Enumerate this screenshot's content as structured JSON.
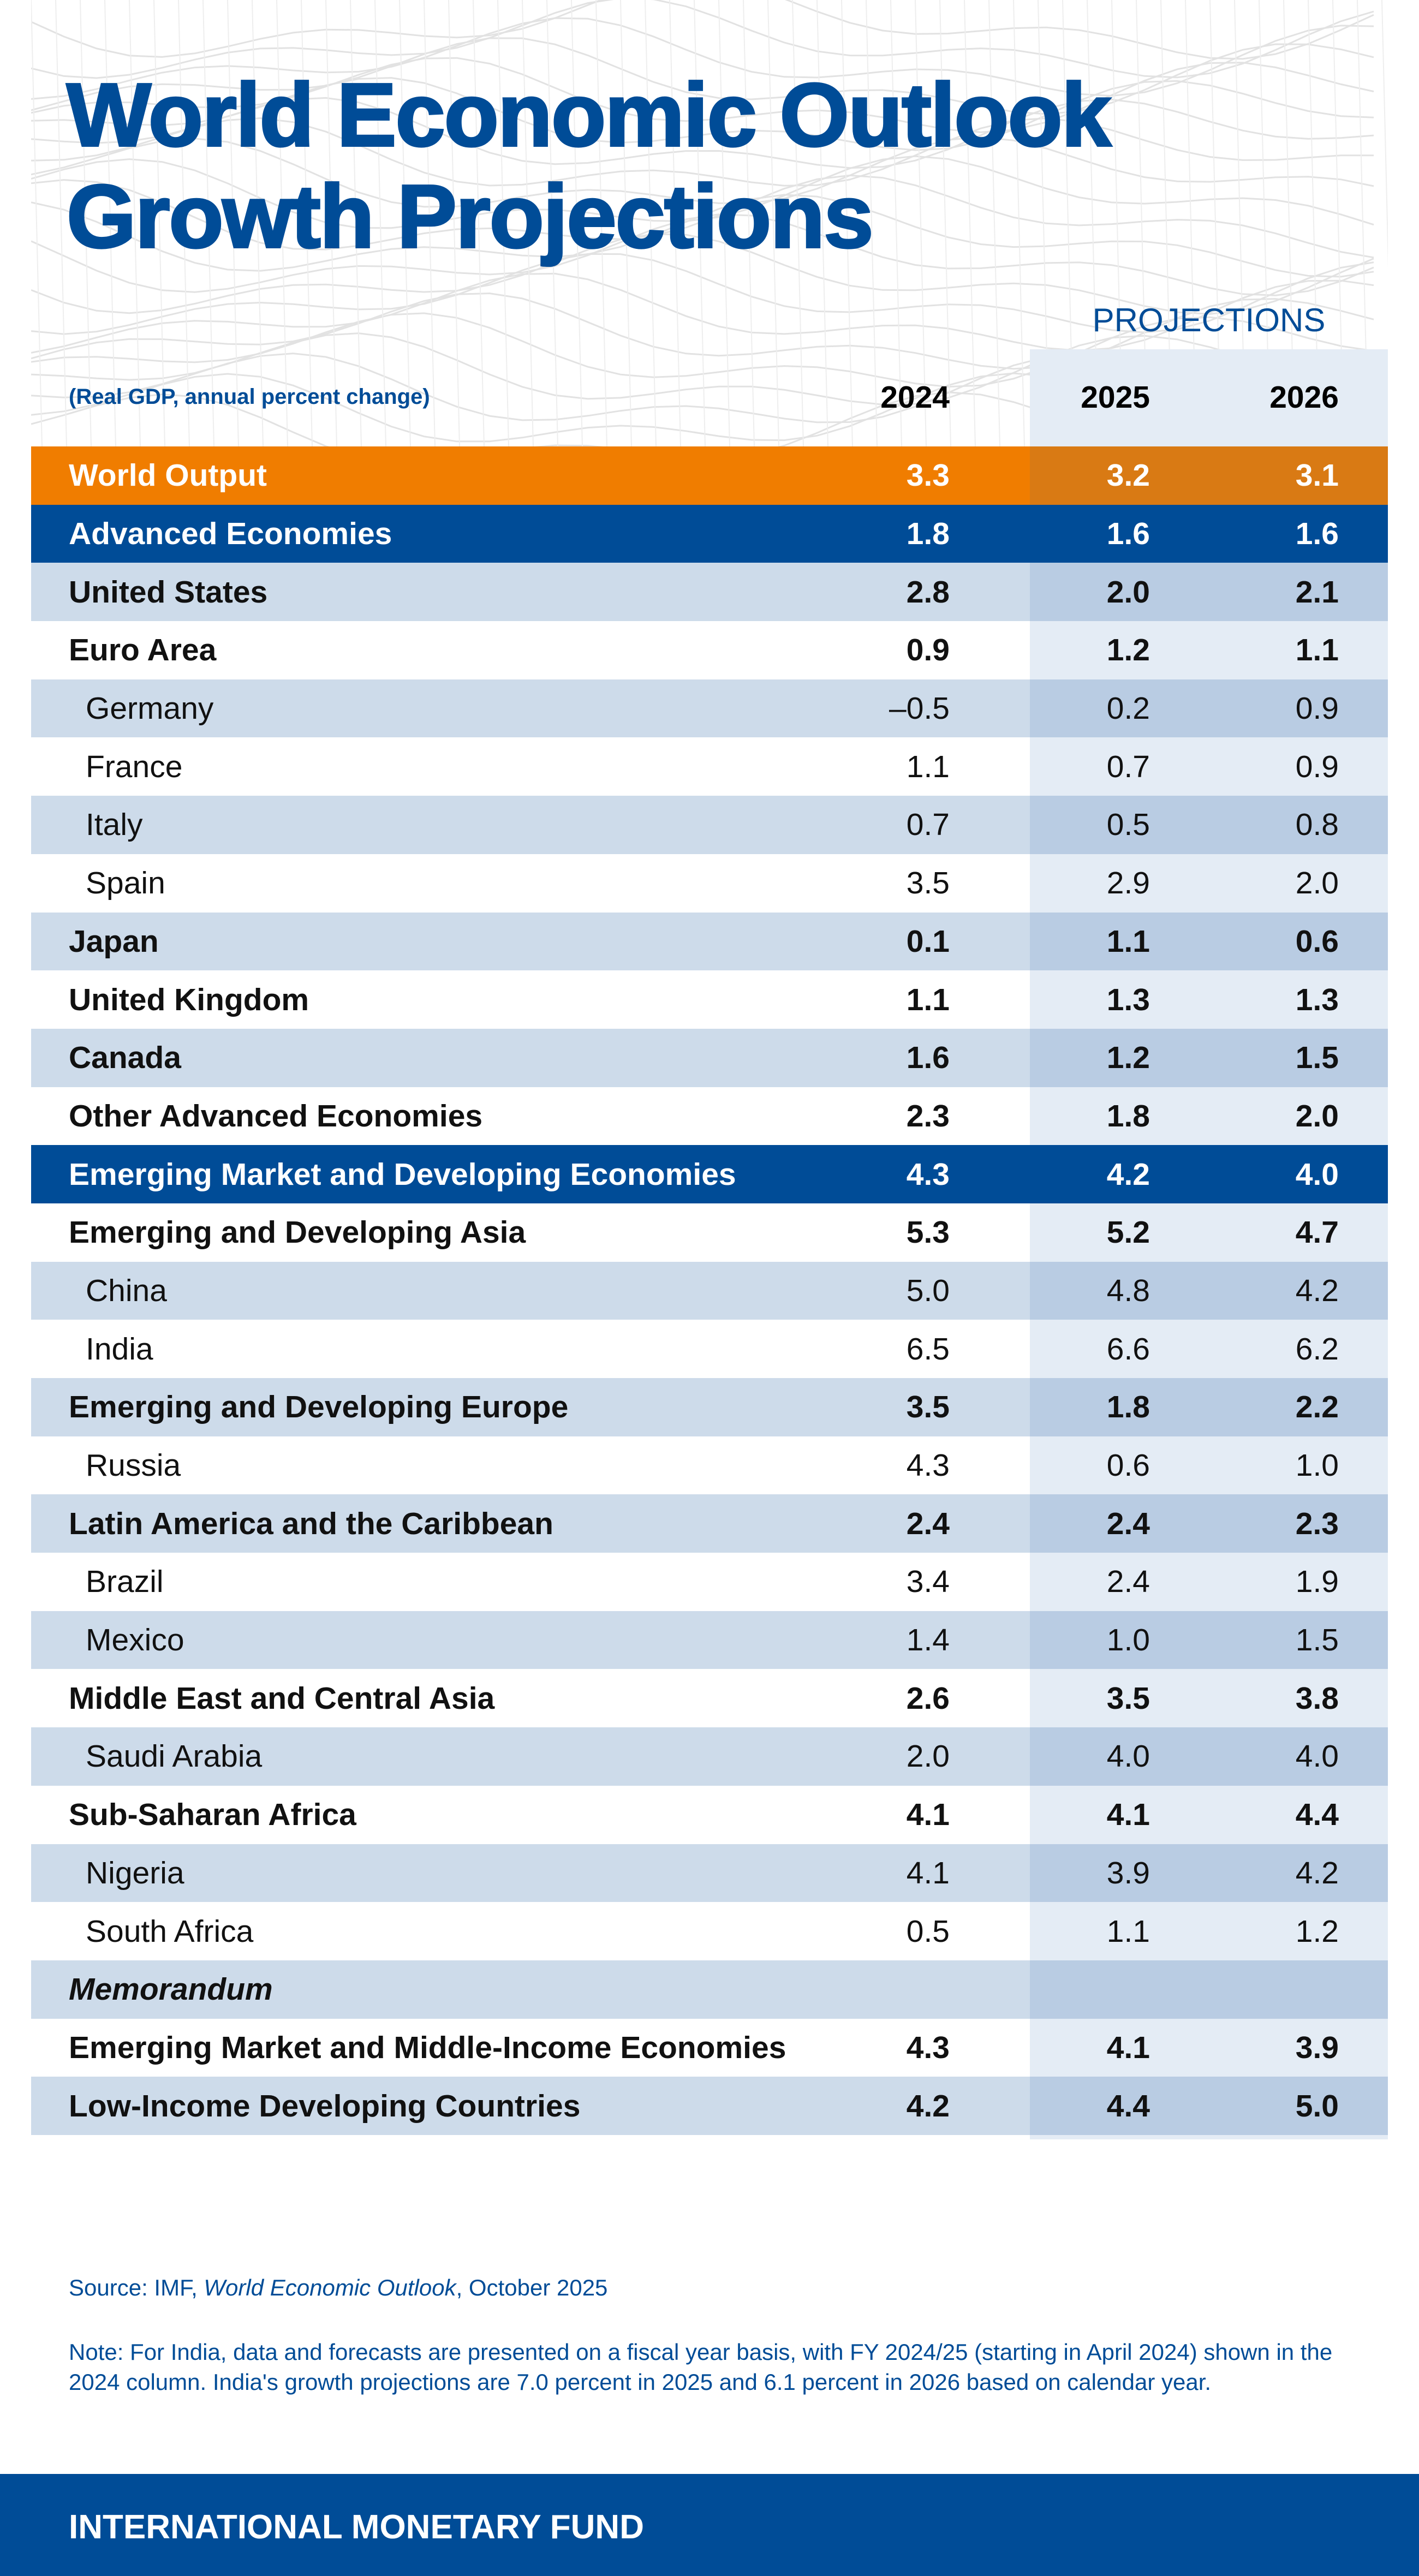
{
  "title_lines": [
    "World Economic Outlook",
    "Growth Projections"
  ],
  "projections_label": "PROJECTIONS",
  "units_note": "(Real GDP, annual percent change)",
  "years": [
    "2024",
    "2025",
    "2026"
  ],
  "colors": {
    "brand_blue": "#004c97",
    "orange": "#f07d00",
    "row_shade": "#cddbea",
    "projection_shade": "#e4ecf5"
  },
  "rows": [
    {
      "label": "World Output",
      "style": "world",
      "values": [
        "3.3",
        "3.2",
        "3.1"
      ]
    },
    {
      "label": "Advanced Economies",
      "style": "agg",
      "values": [
        "1.8",
        "1.6",
        "1.6"
      ]
    },
    {
      "label": "United States",
      "style": "bold",
      "values": [
        "2.8",
        "2.0",
        "2.1"
      ]
    },
    {
      "label": "Euro Area",
      "style": "bold",
      "values": [
        "0.9",
        "1.2",
        "1.1"
      ]
    },
    {
      "label": "Germany",
      "style": "indent",
      "values": [
        "–0.5",
        "0.2",
        "0.9"
      ]
    },
    {
      "label": "France",
      "style": "indent",
      "values": [
        "1.1",
        "0.7",
        "0.9"
      ]
    },
    {
      "label": "Italy",
      "style": "indent",
      "values": [
        "0.7",
        "0.5",
        "0.8"
      ]
    },
    {
      "label": "Spain",
      "style": "indent",
      "values": [
        "3.5",
        "2.9",
        "2.0"
      ]
    },
    {
      "label": "Japan",
      "style": "bold",
      "values": [
        "0.1",
        "1.1",
        "0.6"
      ]
    },
    {
      "label": "United Kingdom",
      "style": "bold",
      "values": [
        "1.1",
        "1.3",
        "1.3"
      ]
    },
    {
      "label": "Canada",
      "style": "bold",
      "values": [
        "1.6",
        "1.2",
        "1.5"
      ]
    },
    {
      "label": "Other Advanced Economies",
      "style": "bold",
      "values": [
        "2.3",
        "1.8",
        "2.0"
      ]
    },
    {
      "label": "Emerging Market and Developing Economies",
      "style": "agg",
      "values": [
        "4.3",
        "4.2",
        "4.0"
      ]
    },
    {
      "label": "Emerging and Developing Asia",
      "style": "bold",
      "values": [
        "5.3",
        "5.2",
        "4.7"
      ]
    },
    {
      "label": "China",
      "style": "indent",
      "values": [
        "5.0",
        "4.8",
        "4.2"
      ]
    },
    {
      "label": "India",
      "style": "indent",
      "values": [
        "6.5",
        "6.6",
        "6.2"
      ]
    },
    {
      "label": "Emerging and Developing Europe",
      "style": "bold",
      "values": [
        "3.5",
        "1.8",
        "2.2"
      ]
    },
    {
      "label": "Russia",
      "style": "indent",
      "values": [
        "4.3",
        "0.6",
        "1.0"
      ]
    },
    {
      "label": "Latin America and the Caribbean",
      "style": "bold",
      "values": [
        "2.4",
        "2.4",
        "2.3"
      ]
    },
    {
      "label": "Brazil",
      "style": "indent",
      "values": [
        "3.4",
        "2.4",
        "1.9"
      ]
    },
    {
      "label": "Mexico",
      "style": "indent",
      "values": [
        "1.4",
        "1.0",
        "1.5"
      ]
    },
    {
      "label": "Middle East and Central Asia",
      "style": "bold",
      "values": [
        "2.6",
        "3.5",
        "3.8"
      ]
    },
    {
      "label": "Saudi Arabia",
      "style": "indent",
      "values": [
        "2.0",
        "4.0",
        "4.0"
      ]
    },
    {
      "label": "Sub-Saharan Africa",
      "style": "bold",
      "values": [
        "4.1",
        "4.1",
        "4.4"
      ]
    },
    {
      "label": "Nigeria",
      "style": "indent",
      "values": [
        "4.1",
        "3.9",
        "4.2"
      ]
    },
    {
      "label": "South Africa",
      "style": "indent",
      "values": [
        "0.5",
        "1.1",
        "1.2"
      ]
    },
    {
      "label": "Memorandum",
      "style": "memo",
      "values": [
        "",
        "",
        ""
      ]
    },
    {
      "label": "Emerging Market and Middle-Income Economies",
      "style": "bold",
      "values": [
        "4.3",
        "4.1",
        "3.9"
      ]
    },
    {
      "label": "Low-Income Developing Countries",
      "style": "bold",
      "values": [
        "4.2",
        "4.4",
        "5.0"
      ]
    }
  ],
  "source": {
    "prefix": "Source: IMF, ",
    "publication": "World Economic Outlook",
    "suffix": ", October 2025"
  },
  "note": "Note: For India, data and forecasts are presented on a fiscal year basis, with FY 2024/25 (starting in April 2024) shown in the 2024 column. India's growth projections are 7.0 percent in 2025 and 6.1 percent in 2026 based on calendar year.",
  "footer": "INTERNATIONAL MONETARY FUND"
}
